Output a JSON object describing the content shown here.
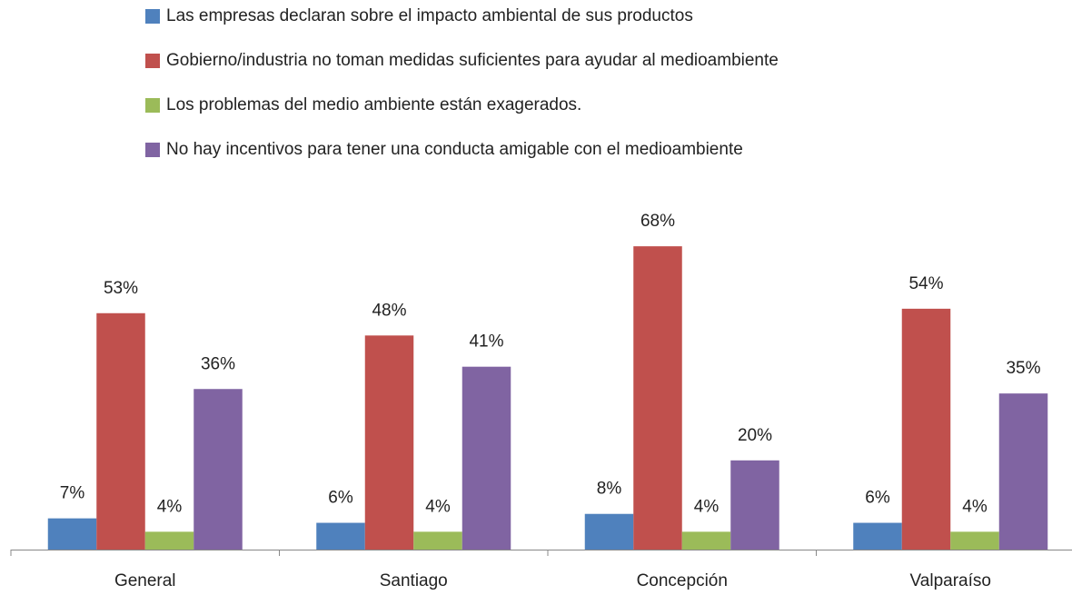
{
  "chart_data": {
    "type": "bar",
    "categories": [
      "General",
      "Santiago",
      "Concepción",
      "Valparaíso"
    ],
    "series": [
      {
        "name": "Las empresas declaran sobre el impacto ambiental de sus productos",
        "color": "#4f81bd",
        "values": [
          7,
          6,
          8,
          6
        ],
        "value_labels": [
          "7%",
          "6%",
          "8%",
          "6%"
        ]
      },
      {
        "name": "Gobierno/industria no toman medidas suficientes para ayudar al medioambiente",
        "color": "#c0504d",
        "values": [
          53,
          48,
          68,
          54
        ],
        "value_labels": [
          "53%",
          "48%",
          "68%",
          "54%"
        ]
      },
      {
        "name": "Los problemas del medio ambiente están exagerados.",
        "color": "#9bbb59",
        "values": [
          4,
          4,
          4,
          4
        ],
        "value_labels": [
          "4%",
          "4%",
          "4%",
          "4%"
        ]
      },
      {
        "name": "No hay incentivos para tener una conducta amigable con el medioambiente",
        "color": "#8064a2",
        "values": [
          36,
          41,
          20,
          35
        ],
        "value_labels": [
          "36%",
          "41%",
          "20%",
          "35%"
        ]
      }
    ],
    "legend": "top"
  }
}
